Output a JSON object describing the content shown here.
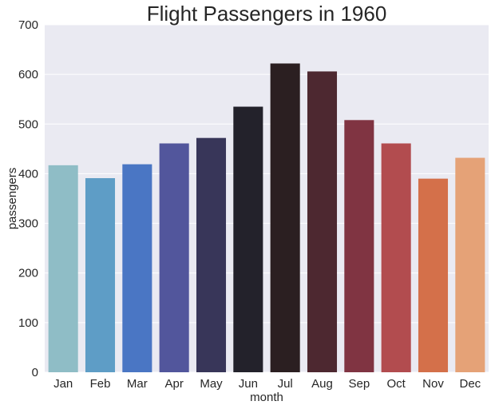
{
  "chart_data": {
    "type": "bar",
    "title": "Flight Passengers in 1960",
    "xlabel": "month",
    "ylabel": "passengers",
    "categories": [
      "Jan",
      "Feb",
      "Mar",
      "Apr",
      "May",
      "Jun",
      "Jul",
      "Aug",
      "Sep",
      "Oct",
      "Nov",
      "Dec"
    ],
    "values": [
      417,
      391,
      419,
      461,
      472,
      535,
      622,
      606,
      508,
      461,
      390,
      432
    ],
    "ylim": [
      0,
      700
    ],
    "yticks": [
      "0",
      "100",
      "200",
      "300",
      "400",
      "500",
      "600",
      "700"
    ],
    "grid": true,
    "colors": [
      "#8FBDC6",
      "#5E9DC6",
      "#4A76C4",
      "#52569C",
      "#383659",
      "#23222B",
      "#2B1F21",
      "#4D2830",
      "#803442",
      "#B24C4F",
      "#D4704A",
      "#E5A277"
    ],
    "background": "#EAEAF2"
  }
}
